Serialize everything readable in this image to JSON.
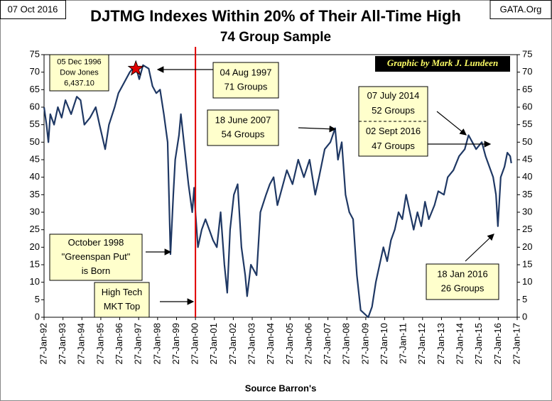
{
  "chart_data": {
    "type": "line",
    "title": "DJTMG Indexes Within 20% of Their All-Time High",
    "subtitle": "74 Group Sample",
    "date_stamp": "07 Oct 2016",
    "source_site": "GATA.Org",
    "credit": "Graphic by Mark J. Lundeen",
    "xlabel": "Source Barron's",
    "xlim": [
      1992.07,
      2017.07
    ],
    "xticks": [
      {
        "value": 1992.07,
        "label": "27-Jan-92"
      },
      {
        "value": 1993.07,
        "label": "27-Jan-93"
      },
      {
        "value": 1994.07,
        "label": "27-Jan-94"
      },
      {
        "value": 1995.07,
        "label": "27-Jan-95"
      },
      {
        "value": 1996.07,
        "label": "27-Jan-96"
      },
      {
        "value": 1997.07,
        "label": "27-Jan-97"
      },
      {
        "value": 1998.07,
        "label": "27-Jan-98"
      },
      {
        "value": 1999.07,
        "label": "27-Jan-99"
      },
      {
        "value": 2000.07,
        "label": "27-Jan-00"
      },
      {
        "value": 2001.07,
        "label": "27-Jan-01"
      },
      {
        "value": 2002.07,
        "label": "27-Jan-02"
      },
      {
        "value": 2003.07,
        "label": "27-Jan-03"
      },
      {
        "value": 2004.07,
        "label": "27-Jan-04"
      },
      {
        "value": 2005.07,
        "label": "27-Jan-05"
      },
      {
        "value": 2006.07,
        "label": "27-Jan-06"
      },
      {
        "value": 2007.07,
        "label": "27-Jan-07"
      },
      {
        "value": 2008.07,
        "label": "27-Jan-08"
      },
      {
        "value": 2009.07,
        "label": "27-Jan-09"
      },
      {
        "value": 2010.07,
        "label": "27-Jan-10"
      },
      {
        "value": 2011.07,
        "label": "27-Jan-11"
      },
      {
        "value": 2012.07,
        "label": "27-Jan-12"
      },
      {
        "value": 2013.07,
        "label": "27-Jan-13"
      },
      {
        "value": 2014.07,
        "label": "27-Jan-14"
      },
      {
        "value": 2015.07,
        "label": "27-Jan-15"
      },
      {
        "value": 2016.07,
        "label": "27-Jan-16"
      },
      {
        "value": 2017.07,
        "label": "27-Jan-17"
      }
    ],
    "ylim": [
      0,
      75
    ],
    "yticks": [
      0,
      5,
      10,
      15,
      20,
      25,
      30,
      35,
      40,
      45,
      50,
      55,
      60,
      65,
      70,
      75
    ],
    "y2lim": [
      0,
      75
    ],
    "y2ticks": [
      0,
      5,
      10,
      15,
      20,
      25,
      30,
      35,
      40,
      45,
      50,
      55,
      60,
      65,
      70,
      75
    ],
    "series": [
      {
        "color": "#1f3864",
        "x": [
          1992.07,
          1992.2,
          1992.3,
          1992.4,
          1992.6,
          1992.8,
          1993.0,
          1993.2,
          1993.5,
          1993.8,
          1994.0,
          1994.2,
          1994.5,
          1994.8,
          1995.0,
          1995.3,
          1995.5,
          1995.8,
          1996.0,
          1996.3,
          1996.6,
          1996.9,
          1997.1,
          1997.3,
          1997.6,
          1997.8,
          1998.0,
          1998.2,
          1998.4,
          1998.6,
          1998.75,
          1998.9,
          1999.0,
          1999.2,
          1999.3,
          1999.5,
          1999.7,
          1999.9,
          2000.0,
          2000.07,
          2000.2,
          2000.4,
          2000.6,
          2000.8,
          2001.0,
          2001.2,
          2001.4,
          2001.6,
          2001.75,
          2001.9,
          2002.1,
          2002.3,
          2002.5,
          2002.7,
          2002.8,
          2003.0,
          2003.3,
          2003.5,
          2003.8,
          2004.0,
          2004.2,
          2004.4,
          2004.6,
          2004.9,
          2005.2,
          2005.5,
          2005.8,
          2006.1,
          2006.4,
          2006.6,
          2006.9,
          2007.2,
          2007.45,
          2007.6,
          2007.8,
          2008.0,
          2008.2,
          2008.4,
          2008.6,
          2008.8,
          2009.0,
          2009.2,
          2009.4,
          2009.6,
          2009.8,
          2010.0,
          2010.2,
          2010.4,
          2010.6,
          2010.8,
          2011.0,
          2011.2,
          2011.4,
          2011.6,
          2011.8,
          2012.0,
          2012.2,
          2012.4,
          2012.7,
          2012.9,
          2013.2,
          2013.4,
          2013.7,
          2014.0,
          2014.3,
          2014.5,
          2014.7,
          2014.9,
          2015.2,
          2015.4,
          2015.6,
          2015.8,
          2015.95,
          2016.05,
          2016.2,
          2016.4,
          2016.55,
          2016.7,
          2016.76
        ],
        "values": [
          60,
          55,
          50,
          58,
          55,
          60,
          57,
          62,
          58,
          63,
          62,
          55,
          57,
          60,
          55,
          48,
          55,
          60,
          64,
          67,
          70,
          72,
          68,
          72,
          71,
          66,
          64,
          65,
          58,
          50,
          18,
          35,
          45,
          52,
          58,
          48,
          38,
          30,
          37,
          30,
          20,
          25,
          28,
          25,
          22,
          20,
          30,
          15,
          7,
          25,
          35,
          38,
          20,
          12,
          6,
          15,
          12,
          30,
          35,
          38,
          40,
          32,
          36,
          42,
          38,
          45,
          40,
          45,
          35,
          40,
          48,
          50,
          54,
          45,
          50,
          35,
          30,
          28,
          12,
          2,
          1,
          0,
          3,
          10,
          15,
          20,
          16,
          22,
          25,
          30,
          28,
          35,
          30,
          25,
          30,
          26,
          33,
          28,
          32,
          36,
          35,
          40,
          42,
          46,
          48,
          52,
          50,
          48,
          50,
          46,
          43,
          40,
          35,
          26,
          40,
          43,
          47,
          46,
          44
        ]
      }
    ],
    "marker_line": {
      "x": 2000.07,
      "color": "#e00000"
    },
    "star": {
      "x": 1996.92,
      "y": 71,
      "color": "#e00000"
    },
    "annotations": [
      {
        "lines": [
          "05 Dec 1996",
          "Dow Jones",
          "6,437.10"
        ]
      },
      {
        "lines": [
          "04 Aug 1997",
          "71 Groups"
        ]
      },
      {
        "lines": [
          "18 June 2007",
          "54 Groups"
        ]
      },
      {
        "lines": [
          "07 July 2014",
          "52 Groups",
          "02 Sept 2016",
          "47 Groups"
        ]
      },
      {
        "lines": [
          "October 1998",
          "\"Greenspan Put\"",
          "is Born"
        ]
      },
      {
        "lines": [
          "High Tech",
          "MKT Top"
        ]
      },
      {
        "lines": [
          "18 Jan 2016",
          "26 Groups"
        ]
      }
    ]
  }
}
